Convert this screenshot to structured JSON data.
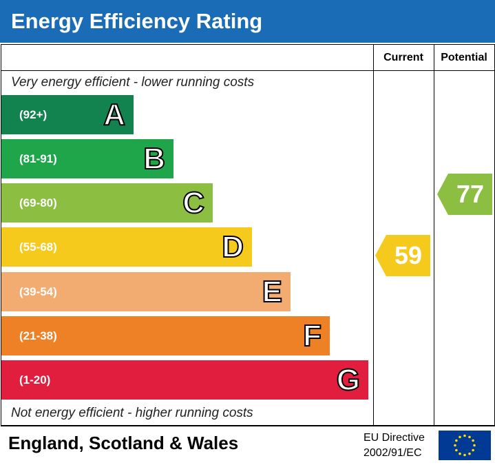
{
  "header": {
    "title": "Energy Efficiency Rating"
  },
  "columns": {
    "current": "Current",
    "potential": "Potential"
  },
  "top_note": "Very energy efficient - lower running costs",
  "bottom_note": "Not energy efficient - higher running costs",
  "bands": [
    {
      "range": "(92+)",
      "letter": "A",
      "color": "#12824f"
    },
    {
      "range": "(81-91)",
      "letter": "B",
      "color": "#1fa64b"
    },
    {
      "range": "(69-80)",
      "letter": "C",
      "color": "#8cbe41"
    },
    {
      "range": "(55-68)",
      "letter": "D",
      "color": "#f5ca1c"
    },
    {
      "range": "(39-54)",
      "letter": "E",
      "color": "#f2ab70"
    },
    {
      "range": "(21-38)",
      "letter": "F",
      "color": "#ee8126"
    },
    {
      "range": "(1-20)",
      "letter": "G",
      "color": "#e21e3e"
    }
  ],
  "current": {
    "value": "59",
    "color": "#f5ca1c"
  },
  "potential": {
    "value": "77",
    "color": "#8cbe41"
  },
  "footer": {
    "region": "England, Scotland & Wales",
    "directive_line1": "EU Directive",
    "directive_line2": "2002/91/EC"
  }
}
